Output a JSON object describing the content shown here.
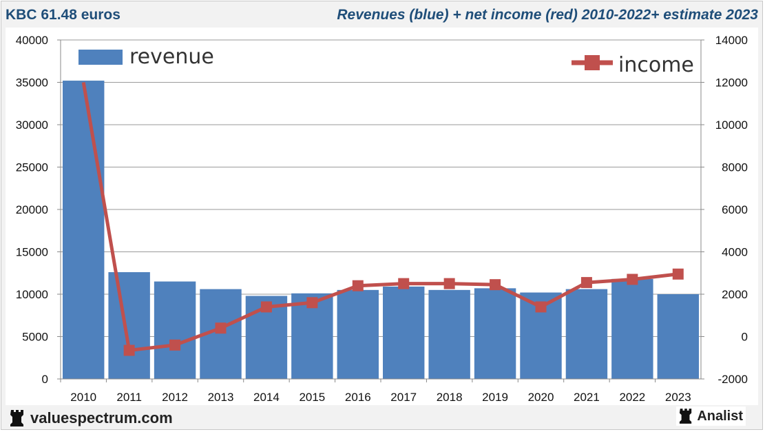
{
  "header": {
    "left_title": "KBC 61.48 euros",
    "right_title": "Revenues (blue) + net income (red) 2010-2022+ estimate 2023"
  },
  "footer": {
    "site": "valuespectrum.com",
    "site_icon": "rook-icon",
    "brand": "Analist",
    "brand_icon": "rook-icon"
  },
  "colors": {
    "revenue_bar": "#4f81bd",
    "income_line": "#c0504d",
    "title": "#1f4e79"
  },
  "chart_data": {
    "type": "bar",
    "categories": [
      "2010",
      "2011",
      "2012",
      "2013",
      "2014",
      "2015",
      "2016",
      "2017",
      "2018",
      "2019",
      "2020",
      "2021",
      "2022",
      "2023"
    ],
    "series": [
      {
        "name": "revenue",
        "type": "bar",
        "axis": "left",
        "values": [
          35200,
          12600,
          11500,
          10600,
          9800,
          10100,
          10500,
          10900,
          10500,
          10700,
          10200,
          10600,
          11800,
          10000
        ]
      },
      {
        "name": "income",
        "type": "line",
        "axis": "right",
        "values": [
          12000,
          -650,
          -400,
          400,
          1400,
          1600,
          2400,
          2500,
          2500,
          2450,
          1400,
          2550,
          2700,
          2950
        ]
      }
    ],
    "y_left": {
      "min": 0,
      "max": 40000,
      "ticks": [
        "0",
        "5000",
        "10000",
        "15000",
        "20000",
        "25000",
        "30000",
        "35000",
        "40000"
      ]
    },
    "y_right": {
      "min": -2000,
      "max": 14000,
      "ticks": [
        "-2000",
        "0",
        "2000",
        "4000",
        "6000",
        "8000",
        "10000",
        "12000",
        "14000"
      ]
    },
    "grid": true,
    "legend": [
      {
        "label": "revenue",
        "placement": "top-left"
      },
      {
        "label": "income",
        "placement": "top-right"
      }
    ]
  }
}
